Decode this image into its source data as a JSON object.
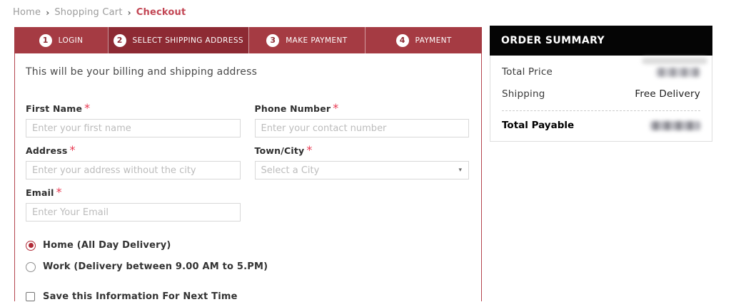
{
  "breadcrumb": {
    "separator": "›",
    "items": [
      {
        "label": "Home",
        "current": false
      },
      {
        "label": "Shopping Cart",
        "current": false
      },
      {
        "label": "Checkout",
        "current": true
      }
    ]
  },
  "stepper": {
    "steps": [
      {
        "number": "1",
        "label": "LOGIN",
        "active": false
      },
      {
        "number": "2",
        "label": "SELECT SHIPPING ADDRESS",
        "active": true
      },
      {
        "number": "3",
        "label": "MAKE PAYMENT",
        "active": false
      },
      {
        "number": "4",
        "label": "PAYMENT",
        "active": false
      }
    ]
  },
  "form": {
    "intro": "This will be your billing and shipping address",
    "required_marker": "*",
    "fields": [
      {
        "label": "First Name",
        "required": true,
        "placeholder": "Enter your first name",
        "value": "",
        "type": "text"
      },
      {
        "label": "Phone Number",
        "required": true,
        "placeholder": "Enter your contact number",
        "value": "",
        "type": "text"
      },
      {
        "label": "Address",
        "required": true,
        "placeholder": "Enter your address without the city",
        "value": "",
        "type": "text"
      },
      {
        "label": "Town/City",
        "required": true,
        "placeholder": "Select a City",
        "value": "",
        "type": "select"
      },
      {
        "label": "Email",
        "required": true,
        "placeholder": "Enter Your Email",
        "value": "",
        "type": "text"
      }
    ],
    "select_caret_icon": "▾",
    "delivery_options": [
      {
        "label": "Home (All Day Delivery)",
        "selected": true
      },
      {
        "label": "Work (Delivery between 9.00 AM to 5.PM)",
        "selected": false
      }
    ],
    "save_checkbox": {
      "label": "Save this Information For Next Time",
      "checked": false
    }
  },
  "order_summary": {
    "title": "ORDER SUMMARY",
    "rows": [
      {
        "label": "Total Price",
        "value": "",
        "value_masked": true
      },
      {
        "label": "Shipping",
        "value": "Free Delivery",
        "value_masked": false
      }
    ],
    "total_row": {
      "label": "Total Payable",
      "value": "",
      "value_masked": true
    }
  },
  "colors": {
    "stepper_inactive": "#a53b43",
    "stepper_active": "#8d2a33",
    "panel_border": "#b5454f",
    "breadcrumb_current": "#c24553",
    "required_asterisk": "#e8364f",
    "radio_selected": "#b02a37",
    "summary_header_bg": "#050505"
  }
}
